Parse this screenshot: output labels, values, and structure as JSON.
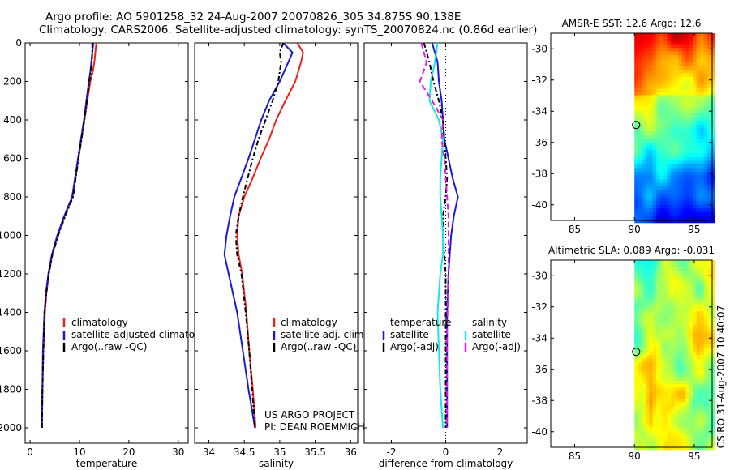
{
  "header": {
    "line1": "Argo profile: AO 5901258_32 24-Aug-2007 20070826_305 34.875S 90.138E",
    "line2": "Climatology: CARS2006. Satellite-adjusted climatology: synTS_20070824.nc (0.86d earlier)"
  },
  "colors": {
    "climatology": "#e8231b",
    "satellite": "#1a1ad6",
    "argo": "#000000",
    "satellite_sal": "#19e6e6",
    "argo_adj": "#e619e6"
  },
  "chart_data": [
    {
      "id": "temperature",
      "type": "line",
      "xlabel": "temperature",
      "xlim": [
        -1,
        32
      ],
      "ylim": [
        0,
        2080
      ],
      "y_inverted": true,
      "xticks": [
        0,
        10,
        20,
        30
      ],
      "yticks": [
        0,
        200,
        400,
        600,
        800,
        1000,
        1200,
        1400,
        1600,
        1800,
        2000
      ],
      "series": [
        {
          "name": "climatology",
          "color": "#e8231b",
          "dash": "",
          "x": [
            13.4,
            13.2,
            13.0,
            12.7,
            12.2,
            11.6,
            11.0,
            10.4,
            9.8,
            8.6,
            7.0,
            5.6,
            4.5,
            3.8,
            3.3,
            3.0,
            2.7,
            2.5,
            2.4
          ],
          "y": [
            0,
            50,
            100,
            150,
            200,
            300,
            400,
            500,
            600,
            800,
            900,
            1000,
            1100,
            1200,
            1300,
            1400,
            1600,
            1800,
            2000
          ]
        },
        {
          "name": "satellite-adjusted climatology",
          "color": "#1a1ad6",
          "dash": "",
          "x": [
            12.8,
            12.6,
            12.4,
            12.2,
            11.9,
            11.4,
            10.9,
            10.3,
            9.7,
            8.5,
            6.9,
            5.5,
            4.4,
            3.7,
            3.2,
            2.9,
            2.6,
            2.5,
            2.4
          ],
          "y": [
            0,
            50,
            100,
            150,
            200,
            300,
            400,
            500,
            600,
            800,
            900,
            1000,
            1100,
            1200,
            1300,
            1400,
            1600,
            1800,
            2000
          ]
        },
        {
          "name": "Argo(..raw -QC)",
          "color": "#000000",
          "dash": "6,3,2,3",
          "x": [
            12.6,
            12.6,
            12.5,
            12.3,
            12.0,
            11.5,
            11.0,
            10.4,
            9.8,
            8.7,
            7.1,
            5.7,
            4.5,
            3.8,
            3.3,
            2.9,
            2.7,
            2.5,
            2.4
          ],
          "y": [
            0,
            50,
            100,
            150,
            200,
            300,
            400,
            500,
            600,
            800,
            900,
            1000,
            1100,
            1200,
            1300,
            1400,
            1600,
            1800,
            2000
          ]
        }
      ],
      "legend": [
        "climatology",
        "satellite-adjusted climatology",
        "Argo(..raw -QC)"
      ]
    },
    {
      "id": "salinity",
      "type": "line",
      "xlabel": "salinity",
      "xlim": [
        33.8,
        36.1
      ],
      "ylim": [
        0,
        2080
      ],
      "y_inverted": true,
      "xticks": [
        34,
        34.5,
        35,
        35.5,
        36
      ],
      "xtick_labels": [
        "34",
        "34.5",
        "35",
        "35.5",
        "36"
      ],
      "series": [
        {
          "name": "climatology",
          "color": "#e8231b",
          "dash": "",
          "x": [
            35.25,
            35.33,
            35.3,
            35.22,
            35.08,
            34.95,
            34.85,
            34.73,
            34.62,
            34.5,
            34.42,
            34.4,
            34.42,
            34.47,
            34.53,
            34.57,
            34.62,
            34.66
          ],
          "y": [
            0,
            50,
            100,
            200,
            300,
            400,
            500,
            600,
            700,
            800,
            900,
            1000,
            1100,
            1200,
            1400,
            1600,
            1800,
            2000
          ]
        },
        {
          "name": "satellite adj. clim.",
          "color": "#1a1ad6",
          "dash": "",
          "x": [
            35.05,
            35.18,
            35.12,
            35.0,
            34.85,
            34.74,
            34.65,
            34.56,
            34.46,
            34.36,
            34.3,
            34.25,
            34.22,
            34.28,
            34.4,
            34.48,
            34.56,
            34.65
          ],
          "y": [
            0,
            50,
            100,
            200,
            300,
            400,
            500,
            600,
            700,
            800,
            900,
            1000,
            1100,
            1200,
            1400,
            1600,
            1800,
            2000
          ]
        },
        {
          "name": "Argo(..raw -QC)",
          "color": "#000000",
          "dash": "6,3,2,3",
          "x": [
            35.05,
            35.0,
            35.02,
            34.98,
            34.9,
            34.8,
            34.7,
            34.62,
            34.55,
            34.48,
            34.42,
            34.38,
            34.4,
            34.46,
            34.52,
            34.57,
            34.61,
            34.65
          ],
          "y": [
            0,
            50,
            100,
            200,
            300,
            400,
            500,
            600,
            700,
            800,
            900,
            1000,
            1100,
            1200,
            1400,
            1600,
            1800,
            2000
          ]
        }
      ],
      "legend": [
        "climatology",
        "satellite adj. clim.",
        "Argo(..raw -QC)"
      ],
      "annotations": [
        "US ARGO PROJECT",
        "PI: DEAN ROEMMICH"
      ]
    },
    {
      "id": "difference",
      "type": "line",
      "xlabel": "difference from climatology",
      "xlim": [
        -3,
        3
      ],
      "ylim": [
        0,
        2080
      ],
      "y_inverted": true,
      "xticks": [
        -2,
        0,
        2
      ],
      "series": [
        {
          "name": "temperature satellite",
          "color": "#1a1ad6",
          "dash": "",
          "x": [
            -0.5,
            -0.3,
            -0.25,
            -0.15,
            -0.1,
            -0.05,
            0.1,
            0.25,
            0.35,
            0.45,
            0.3,
            0.2,
            0.15,
            0.1,
            0.05,
            0.05,
            0.05
          ],
          "y": [
            0,
            100,
            200,
            300,
            400,
            500,
            600,
            700,
            750,
            800,
            900,
            1000,
            1100,
            1200,
            1400,
            1700,
            2000
          ]
        },
        {
          "name": "temperature Argo(-adj)",
          "color": "#000000",
          "dash": "6,3,2,3",
          "x": [
            -0.8,
            -0.6,
            -0.45,
            -0.25,
            -0.1,
            -0.05,
            0.0,
            0.05,
            0.0,
            -0.1,
            -0.1,
            -0.05,
            0.0,
            0.0,
            0.0
          ],
          "y": [
            0,
            100,
            200,
            300,
            400,
            500,
            600,
            700,
            800,
            900,
            1000,
            1100,
            1200,
            1500,
            2000
          ]
        },
        {
          "name": "salinity satellite",
          "color": "#19e6e6",
          "dash": "",
          "x": [
            -0.3,
            -0.4,
            -0.55,
            -0.6,
            -0.25,
            -0.1,
            -0.15,
            -0.2,
            -0.2,
            -0.15,
            -0.1,
            -0.1,
            -0.2,
            -0.3,
            -0.25,
            -0.2,
            -0.1
          ],
          "y": [
            0,
            100,
            200,
            300,
            400,
            500,
            600,
            700,
            800,
            900,
            1000,
            1100,
            1200,
            1400,
            1600,
            1800,
            2000
          ]
        },
        {
          "name": "salinity Argo(-adj)",
          "color": "#e619e6",
          "dash": "7,4",
          "x": [
            -0.9,
            -0.7,
            -0.95,
            -0.5,
            -0.1,
            -0.15,
            -0.05,
            0.0,
            0.05,
            0.1,
            0.1,
            0.1,
            0.05,
            0.05,
            0.05
          ],
          "y": [
            0,
            100,
            200,
            300,
            400,
            500,
            600,
            700,
            800,
            900,
            1000,
            1200,
            1500,
            1800,
            2000
          ]
        }
      ],
      "legend_headers": [
        "temperature",
        "salinity"
      ],
      "legend_left": [
        "satellite",
        "Argo(-adj)"
      ],
      "legend_right": [
        "satellite",
        "Argo(-adj)"
      ]
    },
    {
      "id": "sst_map",
      "type": "heatmap",
      "title": "AMSR-E SST: 12.6 Argo: 12.6",
      "xlim": [
        83,
        96.5
      ],
      "ylim": [
        -41,
        -29
      ],
      "xticks": [
        85,
        90,
        95
      ],
      "yticks": [
        -30,
        -32,
        -34,
        -36,
        -38,
        -40
      ],
      "data_xmin": 90,
      "marker": [
        90.14,
        -34.88
      ]
    },
    {
      "id": "sla_map",
      "type": "heatmap",
      "title": "Altimetric SLA: 0.089 Argo: -0.031",
      "xlim": [
        83,
        96.5
      ],
      "ylim": [
        -41,
        -29
      ],
      "xticks": [
        85,
        90,
        95
      ],
      "yticks": [
        -30,
        -32,
        -34,
        -36,
        -38,
        -40
      ],
      "data_xmin": 90,
      "marker": [
        90.14,
        -34.88
      ]
    }
  ],
  "legend_temperature": {
    "climatology": "climatology",
    "satellite": "satellite-adjusted climatology",
    "argo": "Argo(..raw -QC)"
  },
  "legend_salinity": {
    "climatology": "climatology",
    "satellite": "satellite adj. clim.",
    "argo": "Argo(..raw -QC)"
  },
  "legend_difference": {
    "temp_header": "temperature",
    "sal_header": "salinity",
    "temp_sat": "satellite",
    "temp_argo": "Argo(-adj)",
    "sal_sat": "satellite",
    "sal_argo": "Argo(-adj)"
  },
  "credit": {
    "line1": "US ARGO PROJECT",
    "line2": "PI: DEAN ROEMMICH"
  },
  "timestamp": "CSIRO 31-Aug-2007 10:40:07",
  "map_titles": {
    "sst": "AMSR-E SST: 12.6 Argo: 12.6",
    "sla": "Altimetric SLA: 0.089 Argo: -0.031"
  }
}
